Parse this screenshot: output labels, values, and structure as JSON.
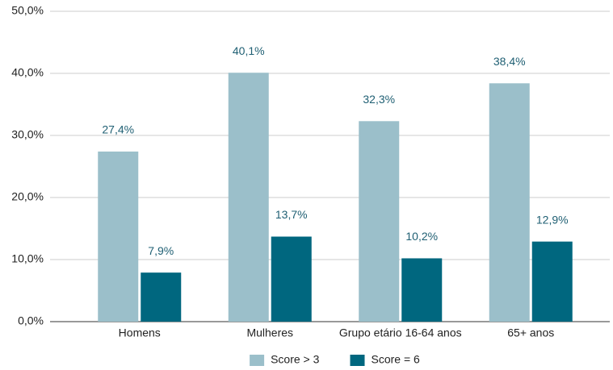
{
  "chart_data": {
    "type": "bar",
    "categories": [
      "Homens",
      "Mulheres",
      "Grupo etário 16-64 anos",
      "65+ anos"
    ],
    "series": [
      {
        "name": "Score > 3",
        "color": "#9bbfca",
        "values": [
          27.4,
          40.1,
          32.3,
          38.4
        ],
        "value_labels": [
          "27,4%",
          "40,1%",
          "32,3%",
          "38,4%"
        ]
      },
      {
        "name": "Score = 6",
        "color": "#00677f",
        "values": [
          7.9,
          13.7,
          10.2,
          12.9
        ],
        "value_labels": [
          "7,9%",
          "13,7%",
          "10,2%",
          "12,9%"
        ]
      }
    ],
    "ylim": [
      0,
      50
    ],
    "yticks": [
      {
        "value": 0,
        "label": "0,0%"
      },
      {
        "value": 10,
        "label": "10,0%"
      },
      {
        "value": 20,
        "label": "20,0%"
      },
      {
        "value": 30,
        "label": "30,0%"
      },
      {
        "value": 40,
        "label": "40,0%"
      },
      {
        "value": 50,
        "label": "50,0%"
      }
    ],
    "grid": true,
    "legend": "bottom"
  }
}
